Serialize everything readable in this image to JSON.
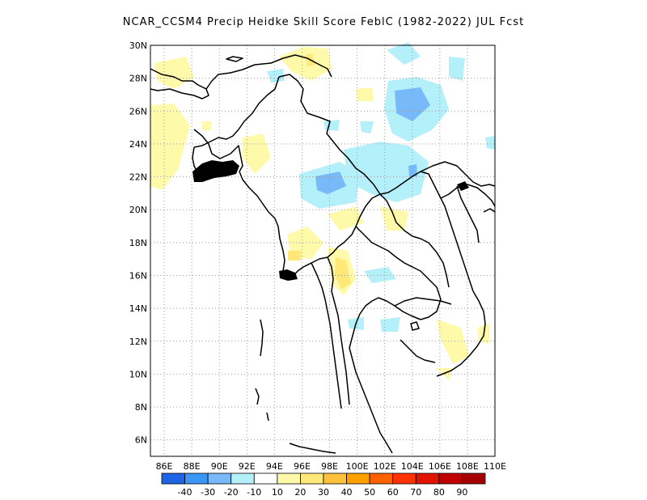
{
  "title": "NCAR_CCSM4 Precip Heidke Skill Score FeblC (1982-2022) JUL Fcst",
  "lat_labels": [
    "30N",
    "28N",
    "26N",
    "24N",
    "22N",
    "20N",
    "18N",
    "16N",
    "14N",
    "12N",
    "10N",
    "8N",
    "6N"
  ],
  "lon_labels": [
    "86E",
    "88E",
    "90E",
    "92E",
    "94E",
    "96E",
    "98E",
    "100E",
    "102E",
    "104E",
    "106E",
    "108E",
    "110E"
  ],
  "colorbar": {
    "colors": [
      "#1e64e6",
      "#3c96f5",
      "#78b9fa",
      "#b4f0fa",
      "#ffffff",
      "#fffaaa",
      "#ffe878",
      "#ffc03c",
      "#ffa000",
      "#ff6000",
      "#ff3200",
      "#e11400",
      "#c00000",
      "#a50000"
    ],
    "labels": [
      "-40",
      "-30",
      "-20",
      "-10",
      "10",
      "20",
      "30",
      "40",
      "50",
      "60",
      "70",
      "80",
      "90"
    ]
  },
  "colors": {
    "border": "#000000",
    "grid": "#9a9a9a"
  }
}
